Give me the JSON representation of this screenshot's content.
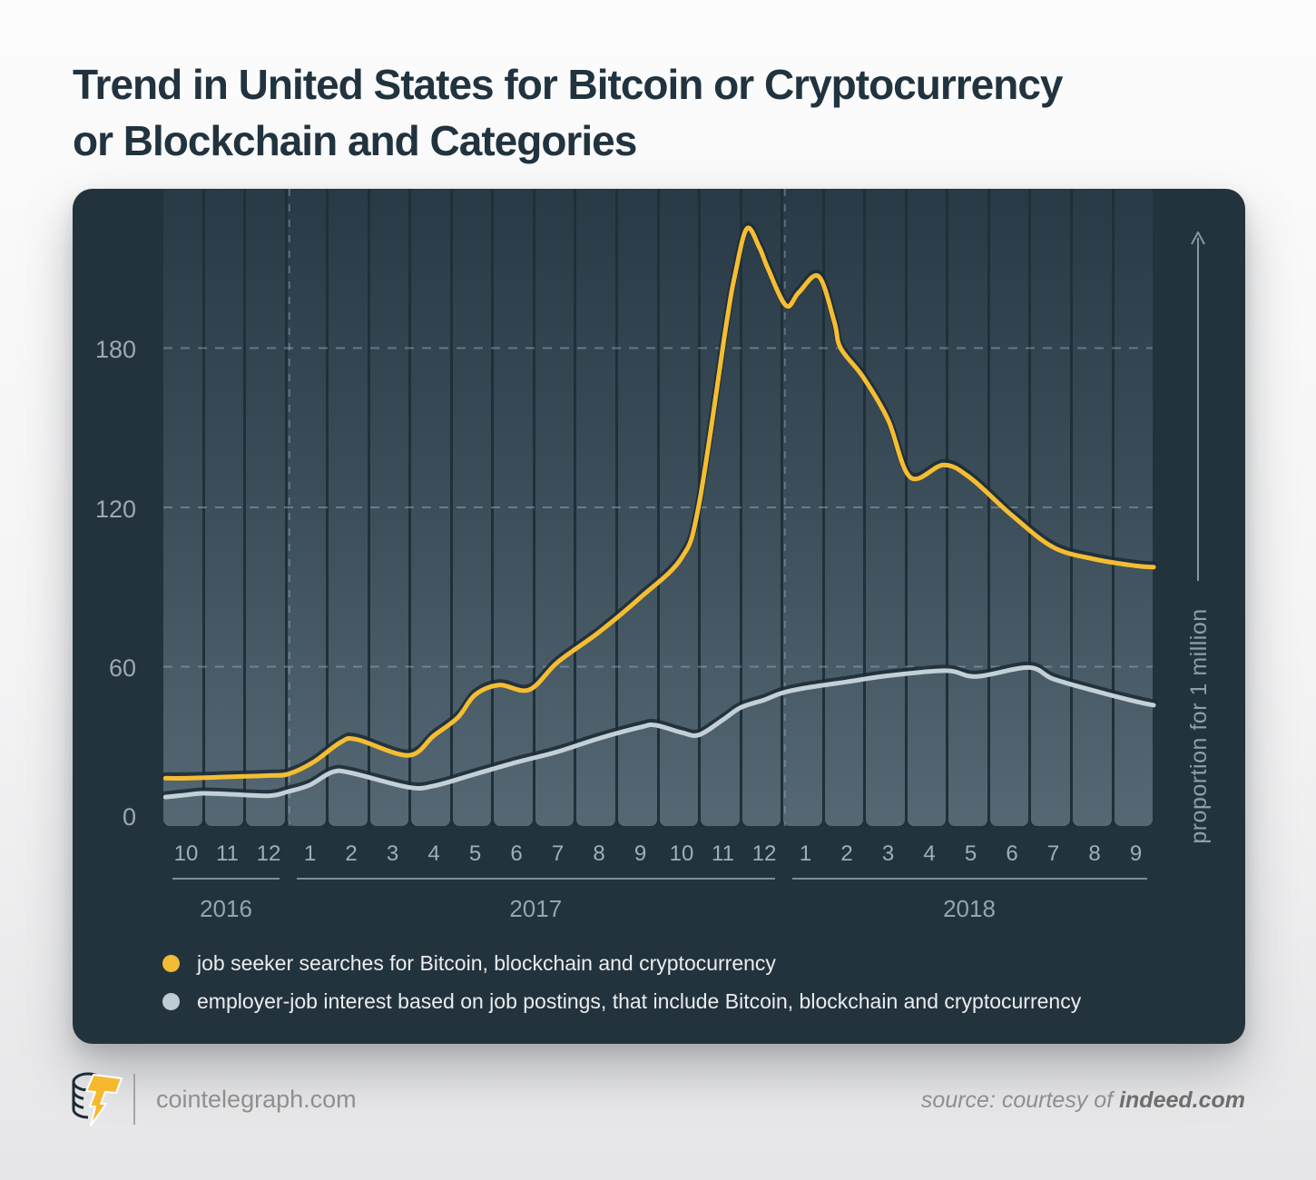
{
  "title": {
    "line1": "Trend in United States for Bitcoin or Cryptocurrency",
    "line2": "or Blockchain and Categories"
  },
  "footer": {
    "site": "cointelegraph.com",
    "source_prefix": "source: courtesy of ",
    "source_name": "indeed.com"
  },
  "chart_data": {
    "type": "line",
    "title": "Trend in United States for Bitcoin or Cryptocurrency or Blockchain and Categories",
    "ylabel": "proportion for 1 million",
    "y_ticks": [
      180,
      120,
      60,
      0
    ],
    "ylim": [
      0,
      240
    ],
    "grid": "dashed horizontal at ticks, dashed vertical at year boundaries",
    "legend_position": "bottom-left inside card",
    "months": [
      "10",
      "11",
      "12",
      "1",
      "2",
      "3",
      "4",
      "5",
      "6",
      "7",
      "8",
      "9",
      "10",
      "11",
      "12",
      "1",
      "2",
      "3",
      "4",
      "5",
      "6",
      "7",
      "8",
      "9"
    ],
    "year_groups": [
      {
        "label": "2016",
        "start": 0,
        "end": 2
      },
      {
        "label": "2017",
        "start": 3,
        "end": 14
      },
      {
        "label": "2018",
        "start": 15,
        "end": 23
      }
    ],
    "legend": [
      {
        "label": "job seeker searches for Bitcoin, blockchain and cryptocurrency",
        "color": "#F2BB35"
      },
      {
        "label": "employer-job interest based on job postings, that include Bitcoin, blockchain and cryptocurrency",
        "color": "#BFCCD3"
      }
    ],
    "series": [
      {
        "name": "job seeker searches for Bitcoin, blockchain and cryptocurrency",
        "color": "#F5BD32",
        "monthly": [
          18,
          18.5,
          19,
          23,
          32.5,
          27,
          34,
          52,
          52,
          62,
          73,
          86,
          101,
          200,
          213,
          205,
          177,
          153,
          134.5,
          131.5,
          117,
          105,
          100.5,
          98
        ],
        "curve": [
          [
            -0.5,
            18
          ],
          [
            0,
            18
          ],
          [
            1,
            18.5
          ],
          [
            2,
            19
          ],
          [
            2.48,
            19.6
          ],
          [
            3.08,
            24
          ],
          [
            3.74,
            31.5
          ],
          [
            4.13,
            32.6
          ],
          [
            5.38,
            26.6
          ],
          [
            6,
            34
          ],
          [
            6.59,
            41
          ],
          [
            7,
            49.4
          ],
          [
            7.58,
            53.1
          ],
          [
            8.31,
            51.3
          ],
          [
            9,
            61.7
          ],
          [
            10,
            73
          ],
          [
            11,
            86
          ],
          [
            12,
            101
          ],
          [
            12.42,
            121
          ],
          [
            13.08,
            188.6
          ],
          [
            13.3,
            208
          ],
          [
            13.58,
            225
          ],
          [
            13.88,
            218
          ],
          [
            14.09,
            210
          ],
          [
            14.53,
            196
          ],
          [
            14.84,
            201
          ],
          [
            15.32,
            207
          ],
          [
            15.7,
            189.7
          ],
          [
            15.85,
            180
          ],
          [
            16.4,
            169
          ],
          [
            17,
            153
          ],
          [
            17.54,
            131.3
          ],
          [
            18.35,
            136
          ],
          [
            19,
            131
          ],
          [
            20,
            117
          ],
          [
            21,
            105
          ],
          [
            22,
            100.5
          ],
          [
            23,
            98
          ],
          [
            23.43,
            97.5
          ]
        ]
      },
      {
        "name": "employer-job interest based on job postings, that include Bitcoin, blockchain and cryptocurrency",
        "color": "#C3D0D7",
        "monthly": [
          11.7,
          12,
          11.4,
          15.4,
          20,
          16,
          15.1,
          19.5,
          24,
          28,
          33,
          37.2,
          35.2,
          40,
          48,
          52,
          54.3,
          56.6,
          58.3,
          56.6,
          58.9,
          55.4,
          50.9,
          46.9
        ],
        "curve": [
          [
            -0.5,
            10.9
          ],
          [
            0,
            11.7
          ],
          [
            0.4,
            12.3
          ],
          [
            1,
            12
          ],
          [
            2,
            11.4
          ],
          [
            2.48,
            13
          ],
          [
            2.99,
            15.4
          ],
          [
            3.54,
            20.3
          ],
          [
            4,
            20
          ],
          [
            5.38,
            14.6
          ],
          [
            6,
            15.1
          ],
          [
            6.99,
            19.5
          ],
          [
            8,
            24
          ],
          [
            9,
            28
          ],
          [
            10,
            33
          ],
          [
            11,
            37.2
          ],
          [
            11.36,
            38
          ],
          [
            12,
            35.2
          ],
          [
            12.42,
            34.3
          ],
          [
            13,
            40
          ],
          [
            13.43,
            44.6
          ],
          [
            14,
            47.5
          ],
          [
            14.43,
            50.1
          ],
          [
            15,
            52
          ],
          [
            16,
            54.3
          ],
          [
            17,
            56.6
          ],
          [
            18.4,
            58.5
          ],
          [
            19.14,
            56.3
          ],
          [
            20.4,
            59.7
          ],
          [
            21,
            55.4
          ],
          [
            22,
            50.9
          ],
          [
            23,
            46.9
          ],
          [
            23.43,
            45.5
          ]
        ]
      }
    ]
  },
  "colors": {
    "card_bg": "#23333d",
    "title": "#21333f",
    "accent_yellow": "#F5BD32",
    "line_gray": "#C3D0D7",
    "gridline": "#93A9B7",
    "tick_text": "#9AA9B3"
  }
}
